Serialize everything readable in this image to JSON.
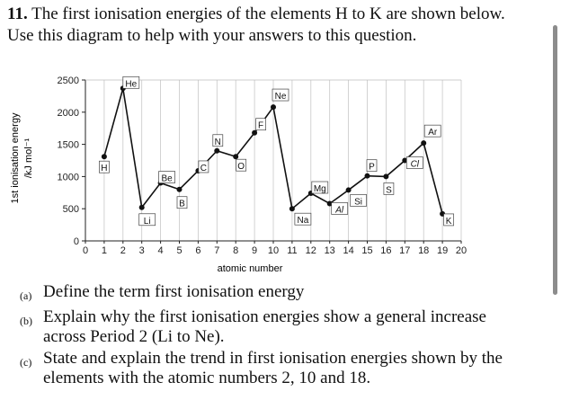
{
  "question": {
    "number": "11.",
    "text": "The first ionisation energies of the elements H to K are shown below. Use this diagram to help with your answers to this question."
  },
  "chart_data": {
    "type": "line",
    "xlabel": "atomic number",
    "ylabel_line1": "1st ionisation energy",
    "ylabel_line2": "/kJ mol⁻¹",
    "xlim": [
      0,
      20
    ],
    "ylim": [
      0,
      2500
    ],
    "x_ticks": [
      0,
      1,
      2,
      3,
      4,
      5,
      6,
      7,
      8,
      9,
      10,
      11,
      12,
      13,
      14,
      15,
      16,
      17,
      18,
      19,
      20
    ],
    "y_ticks": [
      0,
      500,
      1000,
      1500,
      2000,
      2500
    ],
    "points": [
      {
        "x": 1,
        "y": 1310,
        "label": "H"
      },
      {
        "x": 2,
        "y": 2370,
        "label": "He"
      },
      {
        "x": 3,
        "y": 520,
        "label": "Li"
      },
      {
        "x": 4,
        "y": 900,
        "label": "Be"
      },
      {
        "x": 5,
        "y": 800,
        "label": "B"
      },
      {
        "x": 6,
        "y": 1090,
        "label": "C"
      },
      {
        "x": 7,
        "y": 1400,
        "label": "N"
      },
      {
        "x": 8,
        "y": 1310,
        "label": "O"
      },
      {
        "x": 9,
        "y": 1680,
        "label": "F"
      },
      {
        "x": 10,
        "y": 2080,
        "label": "Ne"
      },
      {
        "x": 11,
        "y": 500,
        "label": "Na"
      },
      {
        "x": 12,
        "y": 740,
        "label": "Mg"
      },
      {
        "x": 13,
        "y": 580,
        "label": "Al"
      },
      {
        "x": 14,
        "y": 790,
        "label": "Si"
      },
      {
        "x": 15,
        "y": 1010,
        "label": "P"
      },
      {
        "x": 16,
        "y": 1000,
        "label": "S"
      },
      {
        "x": 17,
        "y": 1250,
        "label": "Cl"
      },
      {
        "x": 18,
        "y": 1520,
        "label": "Ar"
      },
      {
        "x": 19,
        "y": 420,
        "label": "K"
      }
    ],
    "grid": "vertical"
  },
  "parts": [
    {
      "label": "(a)",
      "text": "Define the term first ionisation energy"
    },
    {
      "label": "(b)",
      "text": "Explain why the first ionisation energies show a general increase across Period 2 (Li to Ne)."
    },
    {
      "label": "(c)",
      "text": "State and explain the trend in first ionisation energies shown by the elements with the atomic numbers 2, 10 and 18."
    }
  ]
}
